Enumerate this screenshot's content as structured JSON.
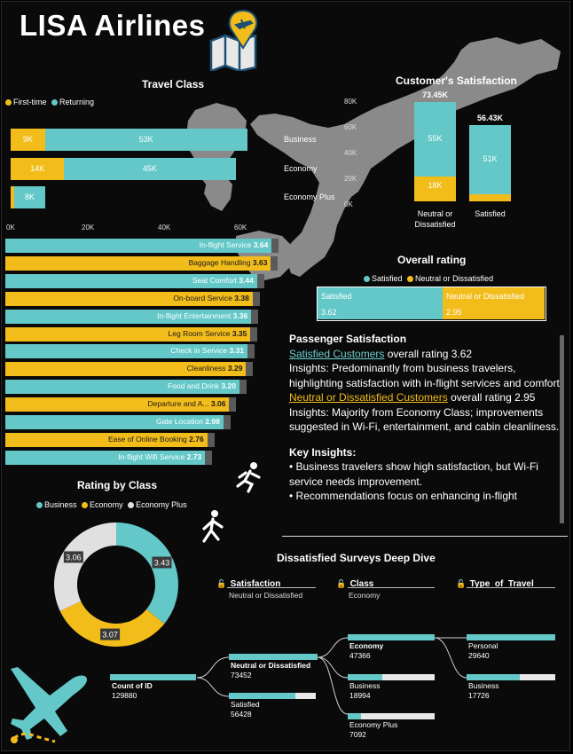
{
  "header": {
    "title": "LISA Airlines"
  },
  "colors": {
    "teal": "#64c8c8",
    "gold": "#f2bc1b",
    "gray": "#e0e0e0",
    "map": "#8a8a8a"
  },
  "travel_class": {
    "title": "Travel Class",
    "legend": [
      "First-time",
      "Returning"
    ],
    "axis_ticks": [
      "0K",
      "20K",
      "40K",
      "60K"
    ],
    "rows": [
      {
        "label": "Business",
        "first_time": 9,
        "returning": 53,
        "first_label": "9K",
        "returning_label": "53K"
      },
      {
        "label": "Economy",
        "first_time": 14,
        "returning": 45,
        "first_label": "14K",
        "returning_label": "45K"
      },
      {
        "label": "Economy Plus",
        "first_time": 1,
        "returning": 8,
        "first_label": "",
        "returning_label": "8K"
      }
    ]
  },
  "satisfaction": {
    "title": "Customer's Satisfaction",
    "y_ticks": [
      "80K",
      "60K",
      "40K",
      "20K",
      "0K"
    ],
    "bars": [
      {
        "label1": "Neutral or",
        "label2": "Dissatisfied",
        "total": "73.45K",
        "teal": 55,
        "gold": 18,
        "teal_label": "55K",
        "gold_label": "18K"
      },
      {
        "label1": "Satisfied",
        "label2": "",
        "total": "56.43K",
        "teal": 51,
        "gold": 5.4,
        "teal_label": "51K",
        "gold_label": ""
      }
    ]
  },
  "services": [
    {
      "name": "In-flight Service",
      "score": "3.64",
      "value": 3.64,
      "color": "teal"
    },
    {
      "name": "Baggage Handling",
      "score": "3.63",
      "value": 3.63,
      "color": "gold"
    },
    {
      "name": "Seat Comfort",
      "score": "3.44",
      "value": 3.44,
      "color": "teal"
    },
    {
      "name": "On-board Service",
      "score": "3.38",
      "value": 3.38,
      "color": "gold"
    },
    {
      "name": "In-flight Entertainment",
      "score": "3.36",
      "value": 3.36,
      "color": "teal"
    },
    {
      "name": "Leg Room Service",
      "score": "3.35",
      "value": 3.35,
      "color": "gold"
    },
    {
      "name": "Check in Service",
      "score": "3.31",
      "value": 3.31,
      "color": "teal"
    },
    {
      "name": "Cleanliness",
      "score": "3.29",
      "value": 3.29,
      "color": "gold"
    },
    {
      "name": "Food and Drink",
      "score": "3.20",
      "value": 3.2,
      "color": "teal"
    },
    {
      "name": "Departure and A...",
      "score": "3.06",
      "value": 3.06,
      "color": "gold"
    },
    {
      "name": "Gate Location",
      "score": "2.98",
      "value": 2.98,
      "color": "teal"
    },
    {
      "name": "Ease of Online Booking",
      "score": "2.76",
      "value": 2.76,
      "color": "gold"
    },
    {
      "name": "In-flight Wifi Service",
      "score": "2.73",
      "value": 2.73,
      "color": "teal"
    }
  ],
  "overall_rating": {
    "title": "Overall rating",
    "legend": [
      "Satisfied",
      "Neutral or Dissatisfied"
    ],
    "segments": [
      {
        "label": "Satisfied",
        "value": "3.62",
        "share": 3.62
      },
      {
        "label": "Neutral or Dissatisfied",
        "value": "2.95",
        "share": 2.95
      }
    ]
  },
  "insights": {
    "heading": "Passenger Satisfaction",
    "satisfied_link": "Satisfied Customers",
    "satisfied_text": " overall rating 3.62",
    "satisfied_insight": "Insights: Predominantly from business travelers, highlighting satisfaction with in-flight services and comfort.",
    "dissatisfied_link": "Neutral or Dissatisfied Customers",
    "dissatisfied_text": " overall rating 2.95",
    "dissatisfied_insight": "Insights: Majority from Economy Class; improvements suggested in Wi-Fi, entertainment, and cabin cleanliness.",
    "key_heading": "Key Insights:",
    "bullet1": "• Business travelers show high satisfaction, but Wi-Fi service needs improvement.",
    "bullet2": "• Recommendations focus on enhancing in-flight"
  },
  "rating_by_class": {
    "title": "Rating by Class",
    "legend": [
      "Business",
      "Economy",
      "Economy Plus"
    ],
    "slices": [
      {
        "label": "3.43",
        "value": 3.43,
        "color": "teal"
      },
      {
        "label": "3.07",
        "value": 3.07,
        "color": "gold"
      },
      {
        "label": "3.06",
        "value": 3.06,
        "color": "gray"
      }
    ]
  },
  "deep_dive": {
    "title": "Dissatisfied Surveys Deep Dive",
    "filters": [
      {
        "header": "Satisfaction",
        "value": "Neutral or Dissatisfied"
      },
      {
        "header": "Class",
        "value": "Economy"
      },
      {
        "header": "Type_of_Travel",
        "value": ""
      }
    ],
    "root": {
      "label": "Count of ID",
      "value": "129880",
      "fill": 1.0
    },
    "level1": [
      {
        "label": "Neutral or Dissatisfied",
        "value": "73452",
        "fill": 1.0
      },
      {
        "label": "Satisfied",
        "value": "56428",
        "fill": 0.77
      }
    ],
    "level2": [
      {
        "label": "Economy",
        "value": "47366",
        "fill": 1.0
      },
      {
        "label": "Business",
        "value": "18994",
        "fill": 0.4
      },
      {
        "label": "Economy Plus",
        "value": "7092",
        "fill": 0.15
      }
    ],
    "level3": [
      {
        "label": "Personal",
        "value": "29640",
        "fill": 1.0
      },
      {
        "label": "Business",
        "value": "17726",
        "fill": 0.6
      }
    ]
  }
}
